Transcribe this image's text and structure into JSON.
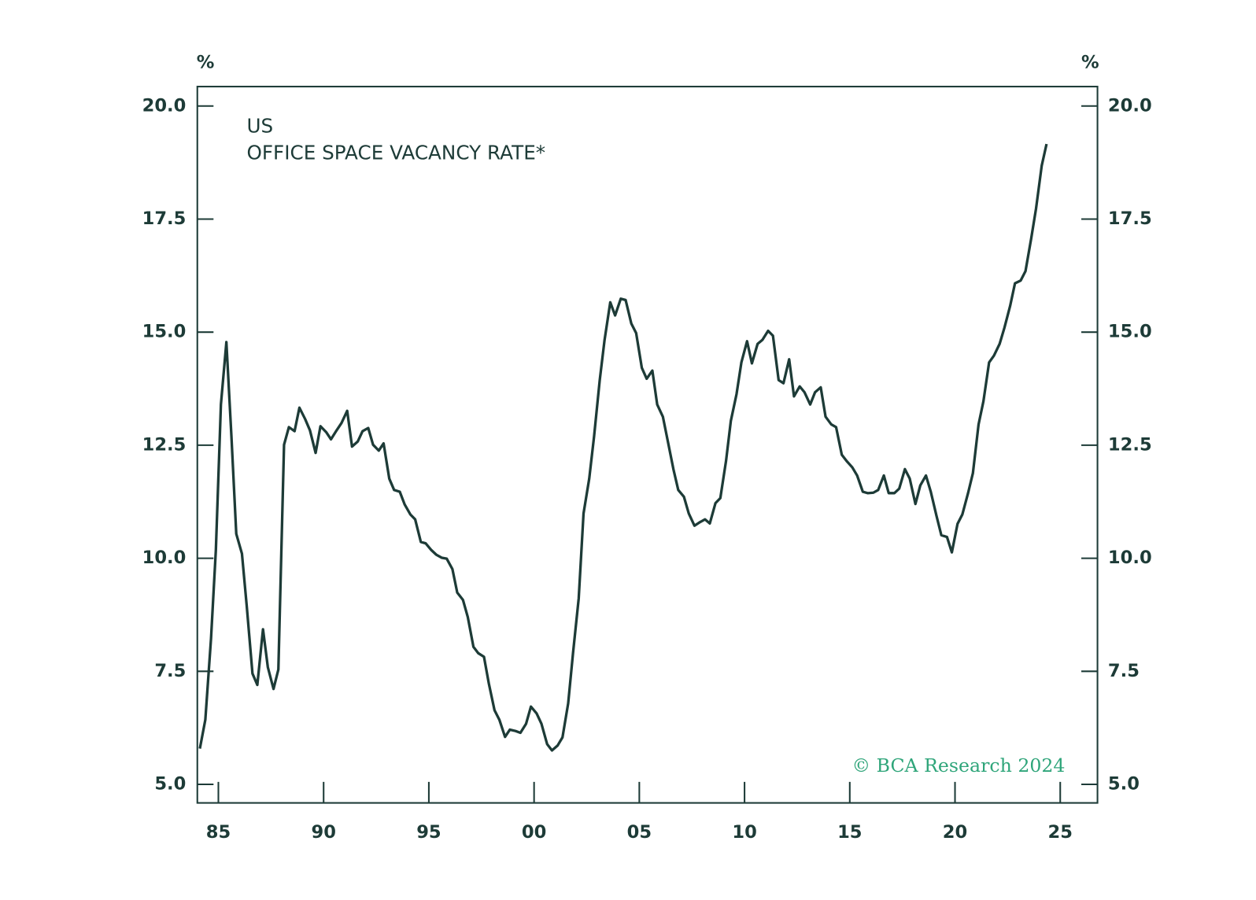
{
  "chart_data": {
    "type": "line",
    "title": "US",
    "subtitle": "OFFICE SPACE VACANCY RATE*",
    "y_unit_left": "%",
    "y_unit_right": "%",
    "annotation": "© BCA Research 2024",
    "xlim": [
      1984,
      2026.77
    ],
    "ylim": [
      4.59,
      20.43
    ],
    "xticks": [
      {
        "value": 1985,
        "label": "85"
      },
      {
        "value": 1990,
        "label": "90"
      },
      {
        "value": 1995,
        "label": "95"
      },
      {
        "value": 2000,
        "label": "00"
      },
      {
        "value": 2005,
        "label": "05"
      },
      {
        "value": 2010,
        "label": "10"
      },
      {
        "value": 2015,
        "label": "15"
      },
      {
        "value": 2020,
        "label": "20"
      },
      {
        "value": 2025,
        "label": "25"
      }
    ],
    "yticks": [
      {
        "value": 5,
        "label": "5.0"
      },
      {
        "value": 7.5,
        "label": "7.5"
      },
      {
        "value": 10,
        "label": "10.0"
      },
      {
        "value": 12.5,
        "label": "12.5"
      },
      {
        "value": 15,
        "label": "15.0"
      },
      {
        "value": 17.5,
        "label": "17.5"
      },
      {
        "value": 20,
        "label": "20.0"
      }
    ],
    "x": [
      1984.12,
      1984.38,
      1984.65,
      1984.88,
      1985.12,
      1985.38,
      1985.62,
      1985.85,
      1986.12,
      1986.35,
      1986.62,
      1986.85,
      1987.12,
      1987.35,
      1987.62,
      1987.85,
      1988.12,
      1988.35,
      1988.62,
      1988.85,
      1989.12,
      1989.35,
      1989.62,
      1989.85,
      1990.12,
      1990.35,
      1990.62,
      1990.85,
      1991.12,
      1991.35,
      1991.62,
      1991.85,
      1992.12,
      1992.35,
      1992.62,
      1992.85,
      1993.12,
      1993.35,
      1993.62,
      1993.85,
      1994.12,
      1994.35,
      1994.62,
      1994.85,
      1995.12,
      1995.35,
      1995.62,
      1995.85,
      1996.12,
      1996.35,
      1996.62,
      1996.85,
      1997.12,
      1997.35,
      1997.62,
      1997.85,
      1998.12,
      1998.35,
      1998.62,
      1998.85,
      1999.12,
      1999.35,
      1999.62,
      1999.85,
      2000.12,
      2000.35,
      2000.62,
      2000.85,
      2001.12,
      2001.35,
      2001.62,
      2001.85,
      2002.12,
      2002.35,
      2002.62,
      2002.85,
      2003.12,
      2003.35,
      2003.62,
      2003.85,
      2004.12,
      2004.35,
      2004.62,
      2004.85,
      2005.12,
      2005.35,
      2005.62,
      2005.85,
      2006.12,
      2006.35,
      2006.62,
      2006.85,
      2007.12,
      2007.35,
      2007.62,
      2007.85,
      2008.12,
      2008.35,
      2008.62,
      2008.85,
      2009.12,
      2009.35,
      2009.62,
      2009.85,
      2010.12,
      2010.35,
      2010.62,
      2010.85,
      2011.12,
      2011.35,
      2011.62,
      2011.85,
      2012.12,
      2012.35,
      2012.62,
      2012.85,
      2013.12,
      2013.35,
      2013.62,
      2013.85,
      2014.12,
      2014.35,
      2014.62,
      2014.85,
      2015.12,
      2015.35,
      2015.62,
      2015.85,
      2016.12,
      2016.35,
      2016.62,
      2016.85,
      2017.12,
      2017.35,
      2017.62,
      2017.85,
      2018.12,
      2018.35,
      2018.62,
      2018.85,
      2019.12,
      2019.35,
      2019.62,
      2019.85,
      2020.12,
      2020.35,
      2020.62,
      2020.85,
      2021.12,
      2021.35,
      2021.62,
      2021.85,
      2022.12,
      2022.35,
      2022.62,
      2022.85,
      2023.12,
      2023.35,
      2023.62,
      2023.85,
      2024.12,
      2024.35
    ],
    "series": [
      {
        "color": "#1d3b37",
        "values": [
          5.79,
          6.43,
          8.22,
          10.18,
          13.4,
          14.78,
          12.69,
          10.54,
          10.1,
          8.93,
          7.45,
          7.2,
          8.43,
          7.59,
          7.11,
          7.54,
          12.51,
          12.9,
          12.81,
          13.33,
          13.08,
          12.83,
          12.33,
          12.92,
          12.79,
          12.63,
          12.83,
          12.99,
          13.26,
          12.47,
          12.58,
          12.81,
          12.88,
          12.51,
          12.38,
          12.54,
          11.76,
          11.51,
          11.47,
          11.19,
          10.97,
          10.86,
          10.36,
          10.33,
          10.18,
          10.08,
          10.01,
          9.99,
          9.76,
          9.24,
          9.08,
          8.7,
          8.04,
          7.9,
          7.82,
          7.23,
          6.64,
          6.43,
          6.05,
          6.21,
          6.18,
          6.14,
          6.34,
          6.72,
          6.57,
          6.34,
          5.89,
          5.75,
          5.86,
          6.04,
          6.79,
          7.9,
          9.11,
          10.99,
          11.76,
          12.69,
          13.94,
          14.83,
          15.66,
          15.37,
          15.74,
          15.71,
          15.19,
          14.98,
          14.21,
          13.97,
          14.15,
          13.4,
          13.13,
          12.6,
          11.97,
          11.51,
          11.36,
          10.99,
          10.72,
          10.79,
          10.86,
          10.77,
          11.22,
          11.33,
          12.15,
          13.04,
          13.63,
          14.33,
          14.8,
          14.31,
          14.74,
          14.83,
          15.03,
          14.92,
          13.94,
          13.87,
          14.4,
          13.58,
          13.8,
          13.67,
          13.4,
          13.67,
          13.78,
          13.13,
          12.96,
          12.9,
          12.29,
          12.15,
          12.01,
          11.83,
          11.47,
          11.44,
          11.45,
          11.51,
          11.83,
          11.44,
          11.44,
          11.54,
          11.97,
          11.76,
          11.2,
          11.61,
          11.83,
          11.47,
          10.94,
          10.51,
          10.47,
          10.13,
          10.76,
          10.97,
          11.44,
          11.88,
          12.96,
          13.47,
          14.33,
          14.48,
          14.74,
          15.1,
          15.58,
          16.08,
          16.14,
          16.35,
          17.07,
          17.73,
          18.68,
          19.16
        ]
      }
    ]
  }
}
